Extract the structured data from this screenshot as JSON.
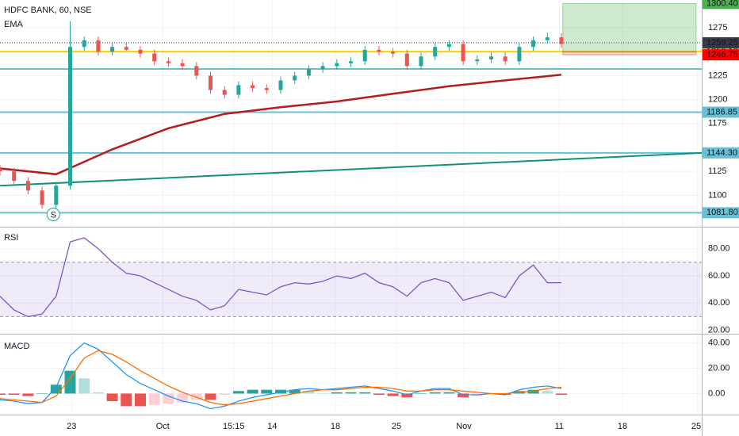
{
  "chart_data": [
    {
      "type": "candlestick",
      "title": "HDFC BANK, 60, NSE",
      "xlim": [
        0,
        100
      ],
      "ylim": [
        1068,
        1304
      ],
      "yticks": [
        1100,
        1125,
        1175,
        1200,
        1225,
        1275
      ],
      "grid": true,
      "up_color": "#26a69a",
      "down_color": "#ef5350",
      "x": [
        0,
        2,
        4,
        6,
        8,
        10,
        12,
        14,
        16,
        18,
        20,
        22,
        24,
        26,
        28,
        30,
        32,
        34,
        36,
        38,
        40,
        42,
        44,
        46,
        48,
        50,
        52,
        54,
        56,
        58,
        60,
        62,
        64,
        66,
        68,
        70,
        72,
        74,
        76,
        78,
        80
      ],
      "open": [
        1128,
        1125,
        1115,
        1105,
        1090,
        1110,
        1255,
        1262,
        1250,
        1255,
        1252,
        1248,
        1240,
        1238,
        1235,
        1225,
        1210,
        1205,
        1215,
        1212,
        1210,
        1220,
        1225,
        1232,
        1235,
        1238,
        1240,
        1252,
        1250,
        1248,
        1235,
        1245,
        1255,
        1258,
        1240,
        1242,
        1245,
        1240,
        1255,
        1262,
        1265
      ],
      "high": [
        1132,
        1129,
        1119,
        1109,
        1114,
        1282,
        1266,
        1266,
        1259,
        1259,
        1256,
        1252,
        1244,
        1242,
        1239,
        1229,
        1214,
        1219,
        1219,
        1216,
        1224,
        1229,
        1236,
        1239,
        1242,
        1244,
        1256,
        1256,
        1254,
        1252,
        1249,
        1259,
        1262,
        1262,
        1246,
        1249,
        1249,
        1259,
        1266,
        1270,
        1269
      ],
      "low": [
        1121,
        1111,
        1101,
        1086,
        1086,
        1106,
        1251,
        1246,
        1246,
        1251,
        1244,
        1236,
        1234,
        1231,
        1221,
        1206,
        1201,
        1201,
        1208,
        1206,
        1206,
        1216,
        1221,
        1228,
        1231,
        1234,
        1236,
        1246,
        1244,
        1231,
        1231,
        1241,
        1251,
        1236,
        1236,
        1238,
        1236,
        1236,
        1251,
        1258,
        1254
      ],
      "close": [
        1125,
        1115,
        1105,
        1090,
        1110,
        1255,
        1262,
        1250,
        1255,
        1252,
        1248,
        1240,
        1238,
        1235,
        1225,
        1210,
        1205,
        1215,
        1212,
        1210,
        1220,
        1225,
        1232,
        1235,
        1238,
        1240,
        1252,
        1250,
        1248,
        1235,
        1245,
        1255,
        1258,
        1240,
        1242,
        1245,
        1240,
        1255,
        1262,
        1265,
        1258
      ],
      "ema": {
        "name": "EMA",
        "color": "#b71c1c",
        "x": [
          0,
          8,
          16,
          24,
          32,
          40,
          48,
          56,
          64,
          72,
          80
        ],
        "values": [
          1128,
          1122,
          1148,
          1170,
          1185,
          1192,
          1198,
          1206,
          1214,
          1220,
          1226
        ]
      },
      "trendline": {
        "color": "#14907a",
        "x": [
          0,
          100
        ],
        "values": [
          1110,
          1144.3
        ]
      },
      "hlines": [
        1232
      ],
      "hline_color": "#67c0d4",
      "price_labels": [
        {
          "value": 1300.4,
          "label": "1300.40",
          "color": "#4caf50"
        },
        {
          "value": 1259.35,
          "label": "1259.35",
          "color": "#26a69a",
          "line": "dotted"
        },
        {
          "value": 1250.1,
          "label": "1250.10",
          "color": "#f5d000",
          "line": "solid"
        },
        {
          "value": 1259.25,
          "label": "1259.25",
          "color": "#363a45"
        },
        {
          "value": 1246.75,
          "label": "1246.75",
          "color": "#ff0000"
        },
        {
          "value": 1186.85,
          "label": "1186.85",
          "color": "#67c0d4",
          "line": "solid"
        },
        {
          "value": 1144.3,
          "label": "1144.30",
          "color": "#67c0d4",
          "line": "solid"
        },
        {
          "value": 1081.8,
          "label": "1081.80",
          "color": "#67c0d4",
          "line": "solid"
        }
      ],
      "position": {
        "x": [
          80.2,
          99.2
        ],
        "entry": 1250.1,
        "target": 1300.4,
        "stop": 1246.75
      },
      "signal": {
        "x": 7.6,
        "y": 1080,
        "label": "S",
        "color": "#26a69a"
      }
    },
    {
      "type": "line",
      "title": "RSI",
      "xlim": [
        0,
        100
      ],
      "ylim": [
        18,
        95
      ],
      "yticks": [
        {
          "value": 20,
          "label": "20.00"
        },
        {
          "value": 40,
          "label": "40.00"
        },
        {
          "value": 60,
          "label": "60.00"
        },
        {
          "value": 80,
          "label": "80.00"
        }
      ],
      "band": [
        30,
        70
      ],
      "band_color": "#7e57c2",
      "x": [
        0,
        2,
        4,
        6,
        8,
        10,
        12,
        14,
        16,
        18,
        20,
        22,
        24,
        26,
        28,
        30,
        32,
        34,
        36,
        38,
        40,
        42,
        44,
        46,
        48,
        50,
        52,
        54,
        56,
        58,
        60,
        62,
        64,
        66,
        68,
        70,
        72,
        74,
        76,
        78,
        80
      ],
      "series": [
        {
          "color": "#7e57c2",
          "style": "line",
          "values": [
            45,
            35,
            30,
            32,
            45,
            85,
            88,
            80,
            70,
            62,
            60,
            55,
            50,
            45,
            42,
            35,
            38,
            50,
            48,
            46,
            52,
            55,
            54,
            56,
            60,
            58,
            62,
            55,
            52,
            45,
            55,
            58,
            55,
            42,
            45,
            48,
            44,
            60,
            68,
            55,
            55
          ]
        }
      ]
    },
    {
      "type": "line",
      "title": "MACD",
      "xlim": [
        0,
        100
      ],
      "ylim": [
        -16,
        46
      ],
      "yticks": [
        {
          "value": 0,
          "label": "0.00"
        },
        {
          "value": 20,
          "label": "20.00"
        },
        {
          "value": 40,
          "label": "40.00"
        }
      ],
      "xticks": [
        {
          "value": 10.2,
          "label": "23"
        },
        {
          "value": 23.2,
          "label": "Oct"
        },
        {
          "value": 33.3,
          "label": "15:15"
        },
        {
          "value": 38.8,
          "label": "14"
        },
        {
          "value": 47.8,
          "label": "18"
        },
        {
          "value": 56.5,
          "label": "25"
        },
        {
          "value": 66.1,
          "label": "Nov"
        },
        {
          "value": 79.7,
          "label": "11"
        },
        {
          "value": 88.7,
          "label": "18"
        },
        {
          "value": 99.4,
          "label": "25"
        }
      ],
      "x": [
        0,
        2,
        4,
        6,
        8,
        10,
        12,
        14,
        16,
        18,
        20,
        22,
        24,
        26,
        28,
        30,
        32,
        34,
        36,
        38,
        40,
        42,
        44,
        46,
        48,
        50,
        52,
        54,
        56,
        58,
        60,
        62,
        64,
        66,
        68,
        70,
        72,
        74,
        76,
        78,
        80
      ],
      "series": [
        {
          "style": "histogram",
          "colors": [
            "#26a69a",
            "#b2dfdb",
            "#ffcdd2",
            "#ef5350"
          ],
          "values": [
            -1,
            -1,
            -2,
            0,
            7,
            18,
            12,
            1,
            -6,
            -10,
            -10,
            -9,
            -8,
            -7,
            -5,
            -5,
            -1,
            2,
            3,
            3,
            3,
            3,
            2,
            0,
            1,
            1,
            1,
            -1,
            -2,
            -3,
            0,
            1,
            1,
            -3,
            -2,
            0,
            -1,
            2,
            3,
            2,
            -1
          ]
        },
        {
          "style": "line",
          "color": "#2196f3",
          "values": [
            -5,
            -6,
            -8,
            -7,
            5,
            30,
            40,
            35,
            25,
            15,
            8,
            3,
            -2,
            -6,
            -8,
            -12,
            -10,
            -6,
            -3,
            -1,
            1,
            3,
            4,
            3,
            4,
            5,
            6,
            4,
            2,
            -1,
            2,
            4,
            4,
            -1,
            -1,
            0,
            -1,
            3,
            5,
            6,
            4
          ]
        },
        {
          "style": "line",
          "color": "#ff6d00",
          "values": [
            -4,
            -5,
            -6,
            -7,
            -2,
            12,
            28,
            34,
            31,
            25,
            18,
            12,
            6,
            1,
            -3,
            -7,
            -9,
            -8,
            -6,
            -4,
            -2,
            0,
            2,
            3,
            3,
            4,
            5,
            5,
            4,
            2,
            2,
            3,
            3,
            2,
            1,
            0,
            0,
            1,
            2,
            4,
            5
          ]
        }
      ]
    }
  ]
}
